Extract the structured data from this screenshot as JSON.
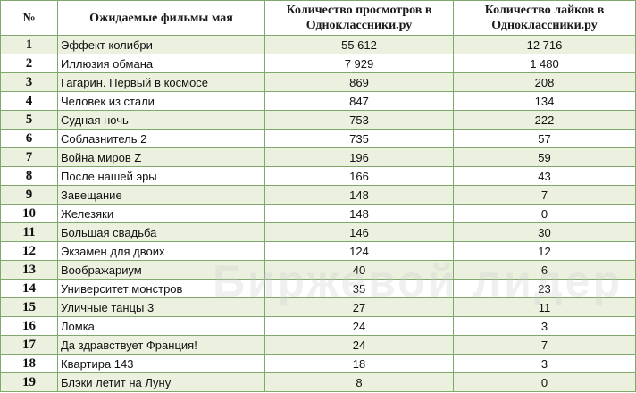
{
  "table": {
    "headers": {
      "num": "№",
      "title": "Ожидаемые фильмы мая",
      "views": "Количество просмотров в Одноклассники.ру",
      "likes": "Количество лайков в Одноклассники.ру"
    },
    "rows": [
      {
        "num": "1",
        "title": "Эффект колибри",
        "views": "55 612",
        "likes": "12 716"
      },
      {
        "num": "2",
        "title": "Иллюзия обмана",
        "views": "7 929",
        "likes": "1 480"
      },
      {
        "num": "3",
        "title": "Гагарин. Первый в космосе",
        "views": "869",
        "likes": "208"
      },
      {
        "num": "4",
        "title": "Человек из стали",
        "views": "847",
        "likes": "134"
      },
      {
        "num": "5",
        "title": "Судная ночь",
        "views": "753",
        "likes": "222"
      },
      {
        "num": "6",
        "title": "Соблазнитель 2",
        "views": "735",
        "likes": "57"
      },
      {
        "num": "7",
        "title": "Война миров Z",
        "views": "196",
        "likes": "59"
      },
      {
        "num": "8",
        "title": "После нашей эры",
        "views": "166",
        "likes": "43"
      },
      {
        "num": "9",
        "title": "Завещание",
        "views": "148",
        "likes": "7"
      },
      {
        "num": "10",
        "title": "Железяки",
        "views": "148",
        "likes": "0"
      },
      {
        "num": "11",
        "title": "Большая свадьба",
        "views": "146",
        "likes": "30"
      },
      {
        "num": "12",
        "title": "Экзамен для двоих",
        "views": "124",
        "likes": "12"
      },
      {
        "num": "13",
        "title": "Воображариум",
        "views": "40",
        "likes": "6"
      },
      {
        "num": "14",
        "title": "Университет монстров",
        "views": "35",
        "likes": "23"
      },
      {
        "num": "15",
        "title": "Уличные танцы 3",
        "views": "27",
        "likes": "11"
      },
      {
        "num": "16",
        "title": "Ломка",
        "views": "24",
        "likes": "3"
      },
      {
        "num": "17",
        "title": "Да здравствует Франция!",
        "views": "24",
        "likes": "7"
      },
      {
        "num": "18",
        "title": "Квартира 143",
        "views": "18",
        "likes": "3"
      },
      {
        "num": "19",
        "title": "Блэки летит на Луну",
        "views": "8",
        "likes": "0"
      }
    ]
  },
  "watermark": "Биржевой лидер"
}
